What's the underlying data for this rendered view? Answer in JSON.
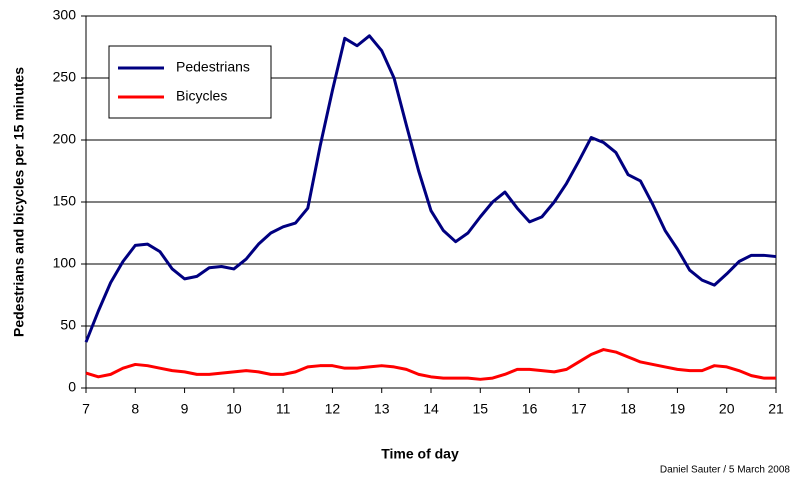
{
  "chart_data": {
    "type": "line",
    "x_label": "Time of day",
    "y_label": "Pedestrians and bicycles per 15 minutes",
    "credit": "Daniel Sauter / 5 March 2008",
    "x": [
      7,
      7.25,
      7.5,
      7.75,
      8,
      8.25,
      8.5,
      8.75,
      9,
      9.25,
      9.5,
      9.75,
      10,
      10.25,
      10.5,
      10.75,
      11,
      11.25,
      11.5,
      11.75,
      12,
      12.25,
      12.5,
      12.75,
      13,
      13.25,
      13.5,
      13.75,
      14,
      14.25,
      14.5,
      14.75,
      15,
      15.25,
      15.5,
      15.75,
      16,
      16.25,
      16.5,
      16.75,
      17,
      17.25,
      17.5,
      17.75,
      18,
      18.25,
      18.5,
      18.75,
      19,
      19.25,
      19.5,
      19.75,
      20,
      20.25,
      20.5,
      20.75,
      21
    ],
    "series": [
      {
        "name": "Pedestrians",
        "color": "#000080",
        "values": [
          37,
          62,
          85,
          102,
          115,
          116,
          110,
          96,
          88,
          90,
          97,
          98,
          96,
          104,
          116,
          125,
          130,
          133,
          145,
          195,
          240,
          282,
          276,
          284,
          272,
          250,
          212,
          175,
          143,
          127,
          118,
          125,
          138,
          150,
          158,
          145,
          134,
          138,
          150,
          165,
          183,
          202,
          198,
          190,
          172,
          167,
          148,
          127,
          112,
          95,
          87,
          83,
          92,
          102,
          107,
          107,
          106
        ]
      },
      {
        "name": "Bicycles",
        "color": "#ff0000",
        "values": [
          12,
          9,
          11,
          16,
          19,
          18,
          16,
          14,
          13,
          11,
          11,
          12,
          13,
          14,
          13,
          11,
          11,
          13,
          17,
          18,
          18,
          16,
          16,
          17,
          18,
          17,
          15,
          11,
          9,
          8,
          8,
          8,
          7,
          8,
          11,
          15,
          15,
          14,
          13,
          15,
          21,
          27,
          31,
          29,
          25,
          21,
          19,
          17,
          15,
          14,
          14,
          18,
          17,
          14,
          10,
          8,
          8
        ]
      }
    ],
    "xlim": [
      7,
      21
    ],
    "xticks": [
      7,
      8,
      9,
      10,
      11,
      12,
      13,
      14,
      15,
      16,
      17,
      18,
      19,
      20,
      21
    ],
    "ylim": [
      0,
      300
    ],
    "yticks": [
      0,
      50,
      100,
      150,
      200,
      250,
      300
    ],
    "grid": true,
    "legend": "upper left"
  }
}
